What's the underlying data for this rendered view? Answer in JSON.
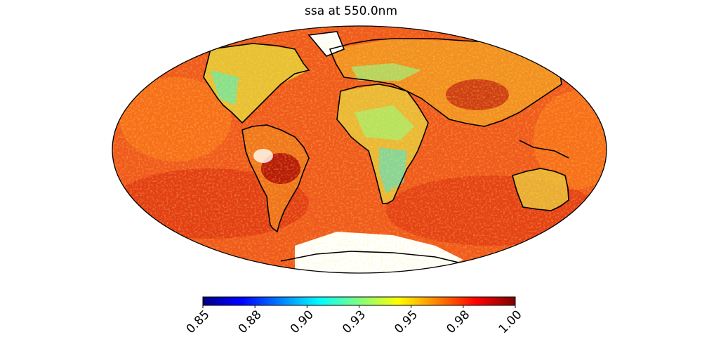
{
  "title": "ssa at 550.0nm",
  "colorbar": {
    "colormap": "jet",
    "min": 0.85,
    "max": 1.0,
    "ticks": [
      0.85,
      0.875,
      0.9,
      0.925,
      0.95,
      0.975,
      1.0
    ],
    "tick_labels": [
      "0.85",
      "0.88",
      "0.90",
      "0.93",
      "0.95",
      "0.98",
      "1.00"
    ]
  },
  "map": {
    "projection": "Mollweide",
    "missing_color": "#ffffff",
    "coastline_color": "#000000",
    "regions": [
      {
        "name": "ocean",
        "value": 0.98
      },
      {
        "name": "central-africa",
        "value": 0.93
      },
      {
        "name": "sahara",
        "value": 0.95
      },
      {
        "name": "amazon",
        "value": 0.99
      },
      {
        "name": "australia",
        "value": 0.95
      },
      {
        "name": "siberia",
        "value": 0.98
      },
      {
        "name": "north-america",
        "value": 0.94
      }
    ]
  }
}
